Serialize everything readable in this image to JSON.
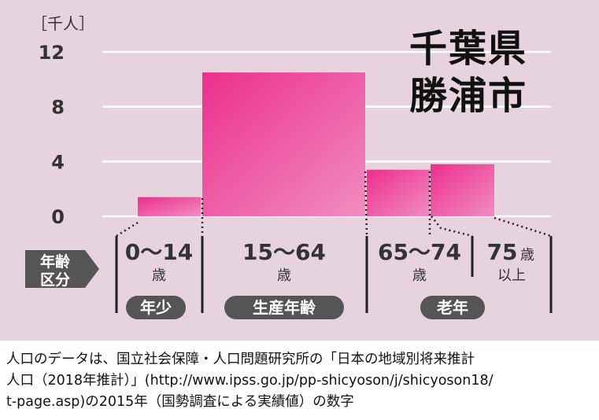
{
  "chart_data": {
    "type": "bar",
    "title": "千葉県\n勝浦市",
    "title_lines": [
      "千葉県",
      "勝浦市"
    ],
    "unit": "［千人］",
    "y_ticks": [
      "12",
      "8",
      "4",
      "0"
    ],
    "ylim": [
      0,
      12
    ],
    "grid": true,
    "categories": [
      "0〜14",
      "15〜64",
      "65〜74",
      "75"
    ],
    "age_sublabels": [
      "歳",
      "歳",
      "歳",
      "歳"
    ],
    "age_sublabel_extra": "以上",
    "values": [
      1.4,
      10.5,
      3.4,
      3.8
    ],
    "axis_label": [
      "年齢",
      "区分"
    ],
    "groups": [
      "年少",
      "生産年齢",
      "老年"
    ],
    "colors": {
      "bar": "#ee3d96",
      "bar_light": "#f07cb6",
      "panel": "#e7d3de",
      "badge": "#555555"
    }
  },
  "caption": [
    "人口のデータは、国立社会保障・人口問題研究所の「日本の地域別将来推計",
    "人口（2018年推計）」(http://www.ipss.go.jp/pp-shicyoson/j/shicyoson18/",
    "t-page.asp)の2015年（国勢調査による実績値）の数字"
  ]
}
